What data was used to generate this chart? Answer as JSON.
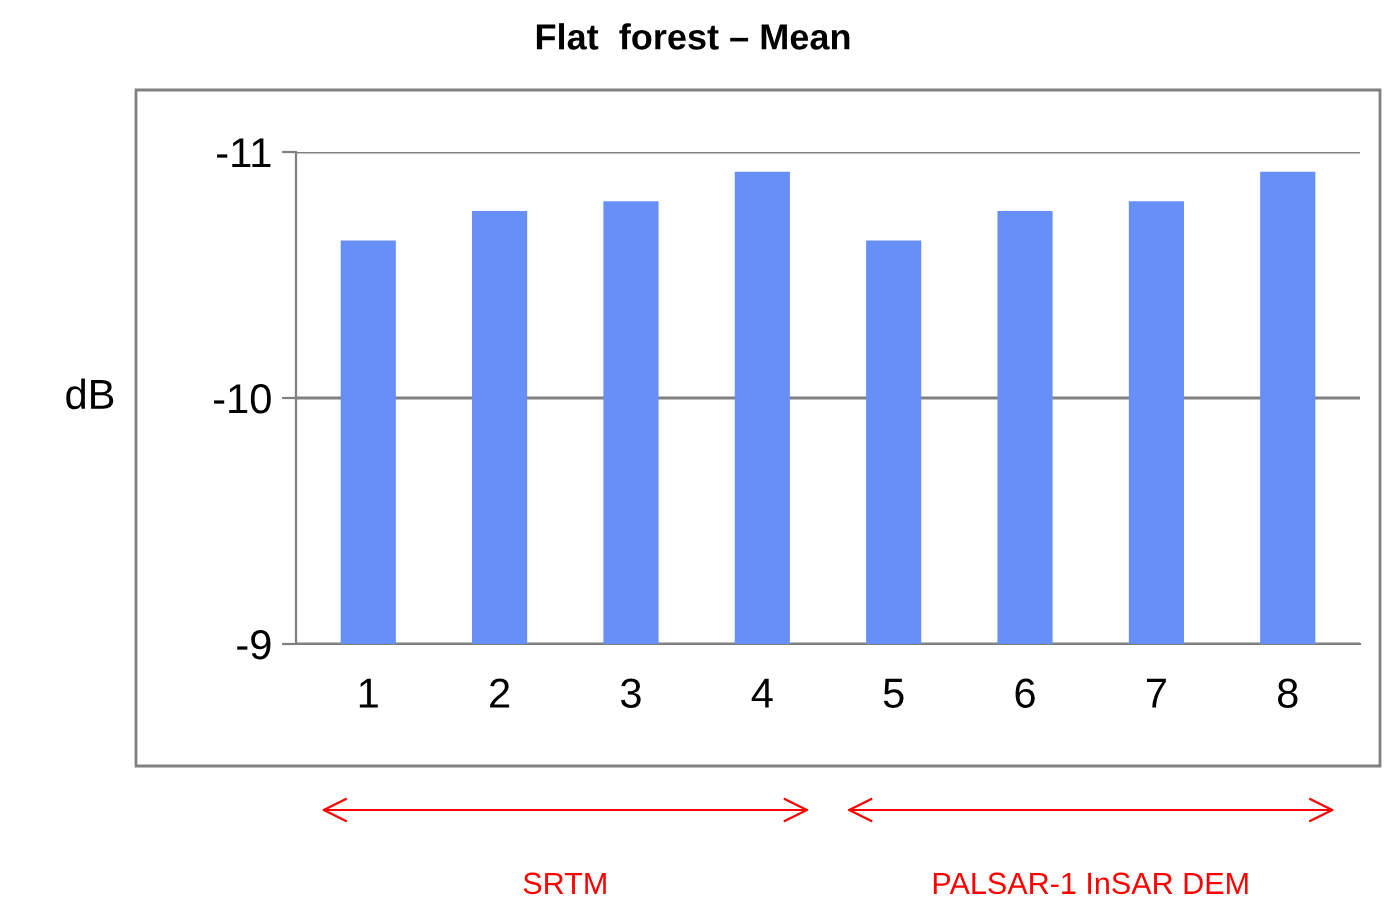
{
  "chart_data": {
    "type": "bar",
    "title": "Flat  forest – Mean",
    "ylabel": "dB",
    "categories": [
      "1",
      "2",
      "3",
      "4",
      "5",
      "6",
      "7",
      "8"
    ],
    "values": [
      -10.64,
      -10.76,
      -10.8,
      -10.92,
      -10.64,
      -10.76,
      -10.8,
      -10.92
    ],
    "color": "#6690f8",
    "ylim": [
      -9,
      -11
    ],
    "yticks": [
      -11,
      -10,
      -9
    ],
    "grid": "y",
    "annotations": [
      "SRTM",
      "PALSAR-1 InSAR DEM"
    ]
  }
}
